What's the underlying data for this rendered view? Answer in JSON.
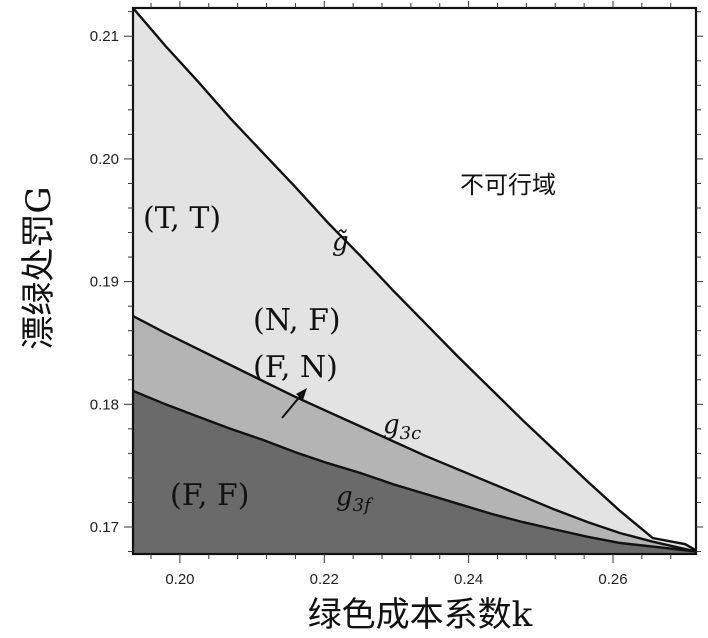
{
  "chart_data": {
    "type": "area",
    "xlabel": "绿色成本系数k",
    "ylabel": "漂绿处罚G",
    "xlim": [
      0.1935,
      0.2715
    ],
    "ylim": [
      0.1678,
      0.2123
    ],
    "x_ticks": [
      0.2,
      0.22,
      0.24,
      0.26
    ],
    "y_ticks": [
      0.17,
      0.18,
      0.19,
      0.2,
      0.21
    ],
    "x_tick_labels": [
      "0.20",
      "0.22",
      "0.24",
      "0.26"
    ],
    "y_tick_labels": [
      "0.17",
      "0.18",
      "0.19",
      "0.20",
      "0.21"
    ],
    "grid": false,
    "series": [
      {
        "name": "g̃",
        "x": [
          0.1935,
          0.198,
          0.2025,
          0.207,
          0.2115,
          0.216,
          0.2205,
          0.225,
          0.2295,
          0.234,
          0.2385,
          0.243,
          0.2475,
          0.252,
          0.2565,
          0.261,
          0.2655,
          0.27,
          0.2715
        ],
        "y": [
          0.2123,
          0.2092,
          0.2063,
          0.2033,
          0.2005,
          0.1977,
          0.1948,
          0.1921,
          0.1893,
          0.1866,
          0.1839,
          0.1813,
          0.1787,
          0.1762,
          0.1737,
          0.1713,
          0.1691,
          0.1686,
          0.1681
        ]
      },
      {
        "name": "g3c",
        "x": [
          0.1935,
          0.198,
          0.2025,
          0.207,
          0.2115,
          0.216,
          0.2205,
          0.225,
          0.2295,
          0.234,
          0.2385,
          0.243,
          0.2475,
          0.252,
          0.2565,
          0.261,
          0.2655,
          0.2715
        ],
        "y": [
          0.1872,
          0.1858,
          0.1845,
          0.1832,
          0.1819,
          0.1806,
          0.1794,
          0.1782,
          0.177,
          0.1758,
          0.1747,
          0.1736,
          0.1725,
          0.1714,
          0.1704,
          0.1695,
          0.1688,
          0.168
        ]
      },
      {
        "name": "g3f",
        "x": [
          0.1935,
          0.198,
          0.2025,
          0.207,
          0.2115,
          0.216,
          0.2205,
          0.225,
          0.2295,
          0.234,
          0.2385,
          0.243,
          0.2475,
          0.252,
          0.2565,
          0.261,
          0.2655,
          0.2715
        ],
        "y": [
          0.1811,
          0.18,
          0.179,
          0.178,
          0.1771,
          0.1761,
          0.1752,
          0.1744,
          0.1735,
          0.1727,
          0.1719,
          0.1711,
          0.1704,
          0.1698,
          0.1692,
          0.1687,
          0.1684,
          0.168
        ]
      }
    ],
    "regions": [
      {
        "label": "(T, T)",
        "fill": "#e3e3e3"
      },
      {
        "label": "(N, F)",
        "fill": "#e3e3e3"
      },
      {
        "label": "(F, N)",
        "fill": "#b4b4b4"
      },
      {
        "label": "(F, F)",
        "fill": "#6a6a6a"
      },
      {
        "label": "不可行域",
        "fill": "#ffffff"
      }
    ],
    "curve_labels": {
      "gtilde": "g̃",
      "g3c_base": "g",
      "g3c_sub": "3c",
      "g3f_base": "g",
      "g3f_sub": "3f"
    }
  }
}
